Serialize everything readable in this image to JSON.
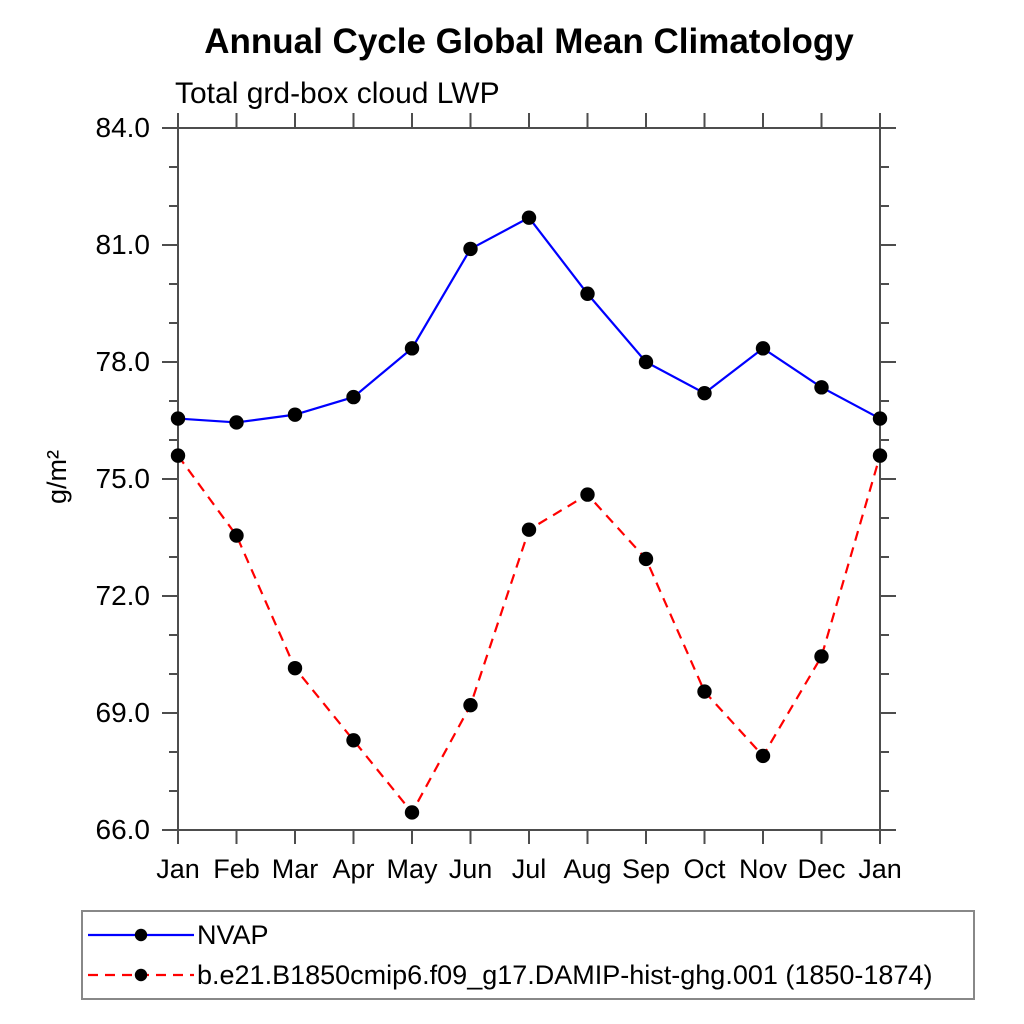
{
  "page": {
    "background": "#ffffff"
  },
  "chart_data": {
    "type": "line",
    "title": "Annual Cycle Global Mean Climatology",
    "subtitle": "Total grd-box cloud LWP",
    "ylabel": "g/m²",
    "xlabel": "",
    "categories": [
      "Jan",
      "Feb",
      "Mar",
      "Apr",
      "May",
      "Jun",
      "Jul",
      "Aug",
      "Sep",
      "Oct",
      "Nov",
      "Dec",
      "Jan"
    ],
    "ylim": [
      66.0,
      84.0
    ],
    "ytick_interval": 3.0,
    "minor_tick_interval": 1.0,
    "ytick_labels": [
      "66.0",
      "69.0",
      "72.0",
      "75.0",
      "78.0",
      "81.0",
      "84.0"
    ],
    "grid": false,
    "legend_position": "bottom-left",
    "axis_color": "#4d4d4d",
    "marker_color": "#000000",
    "series": [
      {
        "name": "NVAP",
        "color": "#0000ff",
        "line_style": "solid",
        "marker": "filled-circle",
        "values": [
          76.55,
          76.45,
          76.65,
          77.1,
          78.35,
          80.9,
          81.7,
          79.75,
          78.0,
          77.2,
          78.35,
          77.35,
          76.55
        ]
      },
      {
        "name": "b.e21.B1850cmip6.f09_g17.DAMIP-hist-ghg.001 (1850-1874)",
        "color": "#ff0000",
        "line_style": "dashed",
        "marker": "filled-circle",
        "values": [
          75.6,
          73.55,
          70.15,
          68.3,
          66.45,
          69.2,
          73.7,
          74.6,
          72.95,
          69.55,
          67.9,
          70.45,
          75.6
        ]
      }
    ]
  }
}
